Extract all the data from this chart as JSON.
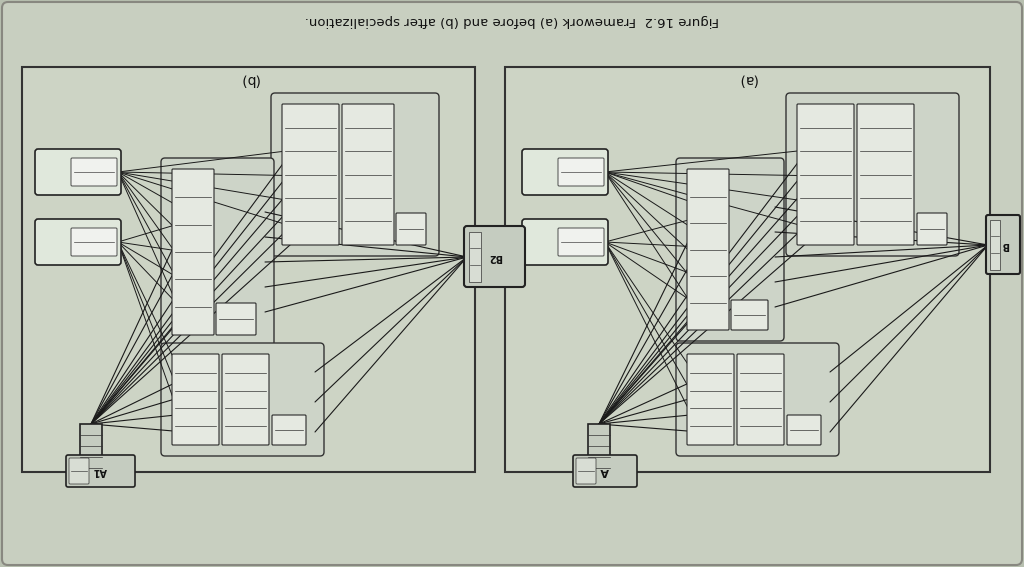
{
  "bg_outer": "#b8c0b0",
  "bg_page": "#c8cfc0",
  "bg_frame": "#cdd4c5",
  "title_text": "Figure 16.2  Framework (a) before and (b) after specialization.",
  "label_a": "(a)",
  "label_b": "(b)",
  "line_color": "#1a1a1a",
  "box_edge": "#2a2a2a",
  "node_fill": "#e8ece4",
  "cluster_fill": "#d5dcd0",
  "inner_fill": "#eef0ea"
}
